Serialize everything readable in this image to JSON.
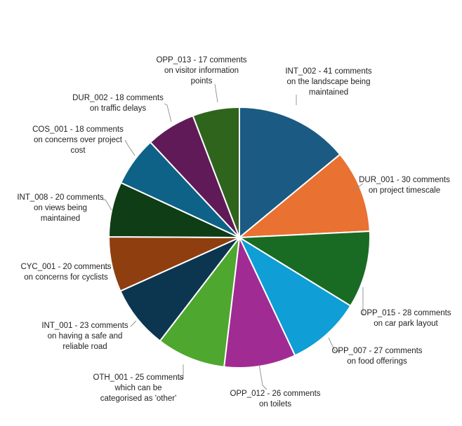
{
  "chart_data": {
    "type": "pie",
    "start_angle_deg": 0,
    "direction": "clockwise",
    "slices": [
      {
        "label": "INT_002 - 41 comments on the landscape being maintained",
        "value": 41,
        "color": "#1b5a82",
        "label_lines": [
          "INT_002 - 41 comments",
          "on the landscape being",
          "maintained"
        ]
      },
      {
        "label": "DUR_001 - 30 comments on project timescale",
        "value": 30,
        "color": "#e97132",
        "label_lines": [
          "DUR_001 - 30 comments",
          "on project timescale"
        ]
      },
      {
        "label": "OPP_015 - 28 comments on car park layout",
        "value": 28,
        "color": "#196b24",
        "label_lines": [
          "OPP_015 - 28 comments",
          "on car park layout"
        ]
      },
      {
        "label": "OPP_007 - 27 comments on food offerings",
        "value": 27,
        "color": "#0f9ed5",
        "label_lines": [
          "OPP_007 - 27 comments",
          "on food offerings"
        ]
      },
      {
        "label": "OPP_012 - 26 comments on toilets",
        "value": 26,
        "color": "#a02b93",
        "label_lines": [
          "OPP_012 - 26 comments",
          "on toilets"
        ]
      },
      {
        "label": "OTH_001 - 25 comments which can be categorised as 'other'",
        "value": 25,
        "color": "#4ea72e",
        "label_lines": [
          "OTH_001 - 25 comments",
          "which can be",
          "categorised as 'other'"
        ]
      },
      {
        "label": "INT_001 - 23 comments on having a safe and reliable road",
        "value": 23,
        "color": "#0c3550",
        "label_lines": [
          "INT_001 - 23 comments",
          "on having a safe and",
          "reliable road"
        ]
      },
      {
        "label": "CYC_001 - 20 comments on concerns for cyclists",
        "value": 20,
        "color": "#8f3e10",
        "label_lines": [
          "CYC_001 - 20 comments",
          "on concerns for cyclists"
        ]
      },
      {
        "label": "INT_008 - 20 comments on views being maintained",
        "value": 20,
        "color": "#0f3d15",
        "label_lines": [
          "INT_008 - 20 comments",
          "on views being",
          "maintained"
        ]
      },
      {
        "label": "COS_001 - 18 comments on concerns over project cost",
        "value": 18,
        "color": "#0e6288",
        "label_lines": [
          "COS_001 - 18 comments",
          "on concerns over project",
          "cost"
        ]
      },
      {
        "label": "DUR_002 - 18 comments on traffic delays",
        "value": 18,
        "color": "#601a58",
        "label_lines": [
          "DUR_002 - 18 comments",
          "on traffic delays"
        ]
      },
      {
        "label": "OPP_013 - 17 comments on visitor information points",
        "value": 17,
        "color": "#2f641c",
        "label_lines": [
          "OPP_013 - 17 comments",
          "on visitor information",
          "points"
        ]
      }
    ]
  }
}
